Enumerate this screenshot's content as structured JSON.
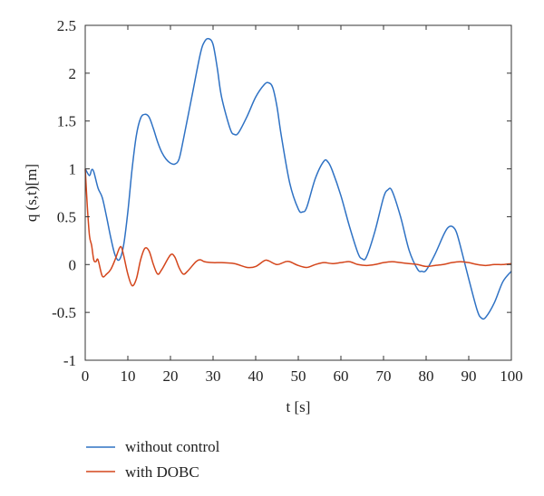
{
  "chart_data": {
    "type": "line",
    "title": "",
    "xlabel": "t [s]",
    "ylabel": "q (s,t)[m]",
    "xlim": [
      0,
      100
    ],
    "ylim": [
      -1,
      2.5
    ],
    "xticks": [
      "0",
      "10",
      "20",
      "30",
      "40",
      "50",
      "60",
      "70",
      "80",
      "90",
      "100"
    ],
    "yticks": [
      "-1",
      "-0.5",
      "0",
      "0.5",
      "1",
      "1.5",
      "2",
      "2.5"
    ],
    "grid": false,
    "legend_position": "bottom-left, outside",
    "series": [
      {
        "name": "without control",
        "color": "#2f72c4",
        "x": [
          0,
          1,
          1.5,
          2,
          3,
          4,
          5,
          6,
          7,
          8,
          9,
          10,
          11,
          12,
          13,
          14,
          15,
          16,
          17,
          18,
          19,
          20,
          21,
          22,
          23,
          25,
          27,
          28,
          29,
          30,
          31,
          32,
          34,
          35,
          36,
          38,
          40,
          42,
          43,
          44,
          45,
          46,
          48,
          50,
          51,
          52,
          54,
          56,
          57,
          58,
          60,
          62,
          64,
          65,
          66,
          68,
          70,
          71,
          72,
          74,
          76,
          78,
          79,
          80,
          82,
          84,
          85,
          86,
          87,
          88,
          90,
          92,
          93,
          94,
          96,
          98,
          100
        ],
        "y": [
          1.0,
          0.93,
          0.99,
          0.97,
          0.8,
          0.7,
          0.5,
          0.28,
          0.1,
          0.05,
          0.2,
          0.55,
          1.0,
          1.35,
          1.53,
          1.57,
          1.54,
          1.42,
          1.28,
          1.17,
          1.1,
          1.06,
          1.05,
          1.1,
          1.3,
          1.75,
          2.2,
          2.33,
          2.36,
          2.3,
          2.05,
          1.75,
          1.42,
          1.36,
          1.38,
          1.55,
          1.75,
          1.88,
          1.9,
          1.85,
          1.65,
          1.35,
          0.85,
          0.58,
          0.55,
          0.6,
          0.9,
          1.08,
          1.07,
          0.98,
          0.72,
          0.4,
          0.12,
          0.06,
          0.08,
          0.35,
          0.7,
          0.78,
          0.77,
          0.5,
          0.15,
          -0.05,
          -0.07,
          -0.06,
          0.1,
          0.3,
          0.38,
          0.4,
          0.35,
          0.2,
          -0.15,
          -0.48,
          -0.56,
          -0.55,
          -0.4,
          -0.18,
          -0.07
        ]
      },
      {
        "name": "with DOBC",
        "color": "#d4461c",
        "x": [
          0,
          0.5,
          1,
          1.5,
          2,
          2.5,
          3,
          4,
          5,
          6,
          7,
          8,
          8.5,
          9,
          10,
          11,
          12,
          13,
          14,
          15,
          16,
          17,
          18,
          20,
          21,
          22,
          23,
          24,
          26,
          27,
          28,
          30,
          32,
          35,
          38,
          40,
          42,
          43,
          45,
          47,
          48,
          50,
          52,
          54,
          56,
          58,
          60,
          62,
          64,
          66,
          68,
          70,
          72,
          74,
          76,
          78,
          80,
          82,
          84,
          86,
          88,
          90,
          92,
          94,
          96,
          98,
          100
        ],
        "y": [
          1.0,
          0.6,
          0.3,
          0.2,
          0.05,
          0.03,
          0.05,
          -0.12,
          -0.1,
          -0.05,
          0.05,
          0.17,
          0.18,
          0.1,
          -0.1,
          -0.22,
          -0.15,
          0.05,
          0.17,
          0.14,
          0.0,
          -0.1,
          -0.05,
          0.1,
          0.08,
          -0.03,
          -0.1,
          -0.07,
          0.03,
          0.05,
          0.03,
          0.02,
          0.02,
          0.01,
          -0.03,
          -0.02,
          0.04,
          0.04,
          0.0,
          0.03,
          0.03,
          -0.01,
          -0.03,
          0.0,
          0.02,
          0.01,
          0.02,
          0.03,
          0.0,
          -0.01,
          0.0,
          0.02,
          0.03,
          0.02,
          0.01,
          0.0,
          -0.02,
          -0.01,
          0.0,
          0.02,
          0.03,
          0.02,
          0.0,
          -0.01,
          0.0,
          0.0,
          0.01
        ]
      }
    ]
  }
}
